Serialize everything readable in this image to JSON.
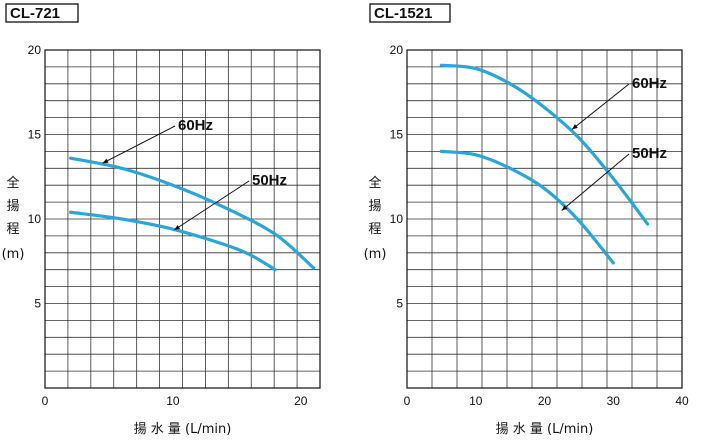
{
  "chart_data": [
    {
      "type": "line",
      "title": "CL-721",
      "xlabel": "揚 水 量 (L/min)",
      "ylabel": "全揚程(m)",
      "ylabel_chars": [
        "全",
        "揚",
        "程",
        "(m)"
      ],
      "xlim": [
        0,
        21.5
      ],
      "ylim": [
        0,
        20
      ],
      "x_ticks": [
        0,
        10,
        20
      ],
      "y_ticks": [
        5,
        10,
        15,
        20
      ],
      "grid": true,
      "series": [
        {
          "name": "60Hz",
          "color": "#2aa6d9",
          "x": [
            2,
            6,
            10,
            14,
            18,
            21
          ],
          "y": [
            13.6,
            13.0,
            12.0,
            10.7,
            9.1,
            7.1
          ]
        },
        {
          "name": "50Hz",
          "color": "#2aa6d9",
          "x": [
            2,
            6,
            10,
            14,
            16,
            18
          ],
          "y": [
            10.4,
            10.0,
            9.4,
            8.5,
            7.9,
            7.0
          ]
        }
      ],
      "annotations": [
        {
          "text": "60Hz",
          "series": 0,
          "point_x": 4.5,
          "point_y": 13.3
        },
        {
          "text": "50Hz",
          "series": 1,
          "point_x": 10.1,
          "point_y": 9.35
        }
      ]
    },
    {
      "type": "line",
      "title": "CL-1521",
      "xlabel": "揚 水 量 (L/min)",
      "ylabel": "全揚程(m)",
      "ylabel_chars": [
        "全",
        "揚",
        "程",
        "(m)"
      ],
      "xlim": [
        0,
        40
      ],
      "ylim": [
        0,
        20
      ],
      "x_ticks": [
        0,
        10,
        20,
        30,
        40
      ],
      "y_ticks": [
        5,
        10,
        15,
        20
      ],
      "grid": true,
      "series": [
        {
          "name": "60Hz",
          "color": "#2aa6d9",
          "x": [
            5,
            10,
            15,
            20,
            25,
            30,
            35
          ],
          "y": [
            19.1,
            18.9,
            18.0,
            16.6,
            14.8,
            12.4,
            9.7
          ]
        },
        {
          "name": "50Hz",
          "color": "#2aa6d9",
          "x": [
            5,
            10,
            15,
            20,
            25,
            30
          ],
          "y": [
            14.0,
            13.8,
            13.0,
            11.8,
            9.9,
            7.4
          ]
        }
      ],
      "annotations": [
        {
          "text": "60Hz",
          "series": 0,
          "point_x": 24.0,
          "point_y": 15.3
        },
        {
          "text": "50Hz",
          "series": 1,
          "point_x": 22.5,
          "point_y": 10.5
        }
      ]
    }
  ]
}
